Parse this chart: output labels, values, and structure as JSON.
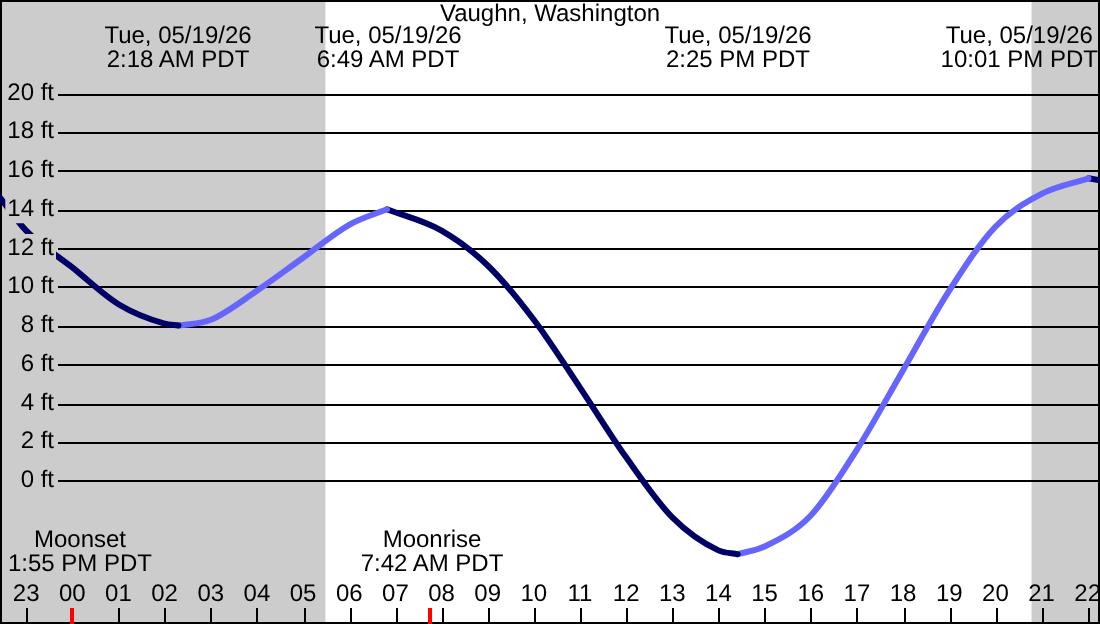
{
  "chart_data": {
    "type": "line",
    "title": "Vaughn, Washington",
    "series": [
      {
        "color": "#000066",
        "x": [
          "--05-18T22:26",
          "--05-18T23:00",
          "--05-19T00:00",
          "--05-19T01:00",
          "--05-19T02:00",
          "--05-19T02:18"
        ],
        "values": [
          14.6,
          12.9,
          11.0,
          9.1,
          8.1,
          8.0
        ]
      },
      {
        "color": "#6666ff",
        "x": [
          "--05-19T02:18",
          "--05-19T03:00",
          "--05-19T04:00",
          "--05-19T05:00",
          "--05-19T06:00",
          "--05-19T06:49"
        ],
        "values": [
          8.0,
          8.3,
          9.8,
          11.5,
          13.2,
          14.0
        ]
      },
      {
        "color": "#000066",
        "x": [
          "--05-19T06:49",
          "--05-19T08:00",
          "--05-19T09:00",
          "--05-19T10:00",
          "--05-19T11:00",
          "--05-19T12:00",
          "--05-19T13:00",
          "--05-19T14:00",
          "--05-19T14:25"
        ],
        "values": [
          14.0,
          12.9,
          11.1,
          8.3,
          4.8,
          1.2,
          -1.9,
          -3.6,
          -3.8
        ]
      },
      {
        "color": "#6666ff",
        "x": [
          "--05-19T14:25",
          "--05-19T15:00",
          "--05-19T16:00",
          "--05-19T17:00",
          "--05-19T18:00",
          "--05-19T19:00",
          "--05-19T20:00",
          "--05-19T21:00",
          "--05-19T22:01"
        ],
        "values": [
          -3.8,
          -3.4,
          -1.8,
          1.6,
          5.7,
          9.8,
          13.1,
          14.8,
          15.6
        ]
      },
      {
        "color": "#000066",
        "x": [
          "--05-19T22:01",
          "--05-19T22:16"
        ],
        "values": [
          15.6,
          15.5
        ]
      }
    ],
    "xlim": [
      "--05-18T22:26",
      "--05-19T22:16"
    ],
    "xticks": [
      {
        "value": "--05-18T23:00",
        "label": "23"
      },
      {
        "value": "--05-19T00:00",
        "label": "00"
      },
      {
        "value": "--05-19T01:00",
        "label": "01"
      },
      {
        "value": "--05-19T02:00",
        "label": "02"
      },
      {
        "value": "--05-19T03:00",
        "label": "03"
      },
      {
        "value": "--05-19T04:00",
        "label": "04"
      },
      {
        "value": "--05-19T05:00",
        "label": "05"
      },
      {
        "value": "--05-19T06:00",
        "label": "06"
      },
      {
        "value": "--05-19T07:00",
        "label": "07"
      },
      {
        "value": "--05-19T08:00",
        "label": "08"
      },
      {
        "value": "--05-19T09:00",
        "label": "09"
      },
      {
        "value": "--05-19T10:00",
        "label": "10"
      },
      {
        "value": "--05-19T11:00",
        "label": "11"
      },
      {
        "value": "--05-19T12:00",
        "label": "12"
      },
      {
        "value": "--05-19T13:00",
        "label": "13"
      },
      {
        "value": "--05-19T14:00",
        "label": "14"
      },
      {
        "value": "--05-19T15:00",
        "label": "15"
      },
      {
        "value": "--05-19T16:00",
        "label": "16"
      },
      {
        "value": "--05-19T17:00",
        "label": "17"
      },
      {
        "value": "--05-19T18:00",
        "label": "18"
      },
      {
        "value": "--05-19T19:00",
        "label": "19"
      },
      {
        "value": "--05-19T20:00",
        "label": "20"
      },
      {
        "value": "--05-19T21:00",
        "label": "21"
      },
      {
        "value": "--05-19T22:00",
        "label": "22"
      }
    ],
    "ylim": [
      -7.4,
      24.8
    ],
    "yticks": [
      {
        "value": 0,
        "label": "0 ft"
      },
      {
        "value": 2,
        "label": "2 ft"
      },
      {
        "value": 4,
        "label": "4 ft"
      },
      {
        "value": 6,
        "label": "6 ft"
      },
      {
        "value": 8,
        "label": "8 ft"
      },
      {
        "value": 10,
        "label": "10 ft"
      },
      {
        "value": 12,
        "label": "12 ft"
      },
      {
        "value": 14,
        "label": "14 ft"
      },
      {
        "value": 16,
        "label": "16 ft"
      },
      {
        "value": 18,
        "label": "18 ft"
      },
      {
        "value": 20,
        "label": "20 ft"
      }
    ],
    "grid": "y",
    "legend": false,
    "marker": "none",
    "line_style": "solid",
    "bands": [
      {
        "axis": "x",
        "from": "--05-18T22:26",
        "to": "--05-19T05:29",
        "color": "#cccccc"
      },
      {
        "axis": "x",
        "from": "--05-19T20:47",
        "to": "--05-19T22:16",
        "color": "#cccccc"
      }
    ],
    "annotations": [
      "Tue, 05/19/26\n2:18 AM PDT",
      "Tue, 05/19/26\n6:49 AM PDT",
      "Tue, 05/19/26\n2:25 PM PDT",
      "Tue, 05/19/26\n10:01 PM PDT",
      "Moonset\n1:55 PM PDT",
      "Moonrise\n7:42 AM PDT"
    ]
  }
}
